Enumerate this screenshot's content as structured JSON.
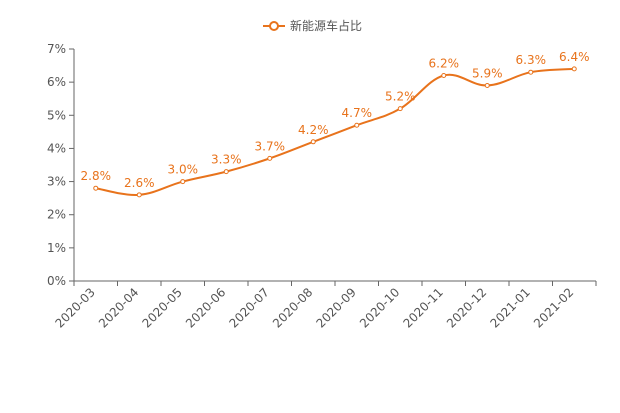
{
  "chart_data": {
    "type": "line",
    "legend": "top",
    "grid": false,
    "categories": [
      "2020-03",
      "2020-04",
      "2020-05",
      "2020-06",
      "2020-07",
      "2020-08",
      "2020-09",
      "2020-10",
      "2020-11",
      "2020-12",
      "2021-01",
      "2021-02"
    ],
    "series": [
      {
        "name": "新能源车占比",
        "color": "#e8731c",
        "values": [
          2.8,
          2.6,
          3.0,
          3.3,
          3.7,
          4.2,
          4.7,
          5.2,
          6.2,
          5.9,
          6.3,
          6.4
        ],
        "value_labels": [
          "2.8%",
          "2.6%",
          "3.0%",
          "3.3%",
          "3.7%",
          "4.2%",
          "4.7%",
          "5.2%",
          "6.2%",
          "5.9%",
          "6.3%",
          "6.4%"
        ]
      }
    ],
    "ylim": [
      0,
      7
    ],
    "yticks": [
      {
        "value": 0,
        "label": "0%"
      },
      {
        "value": 1,
        "label": "1%"
      },
      {
        "value": 2,
        "label": "2%"
      },
      {
        "value": 3,
        "label": "3%"
      },
      {
        "value": 4,
        "label": "4%"
      },
      {
        "value": 5,
        "label": "5%"
      },
      {
        "value": 6,
        "label": "6%"
      },
      {
        "value": 7,
        "label": "7%"
      }
    ]
  }
}
